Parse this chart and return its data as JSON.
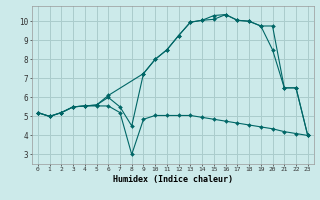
{
  "xlabel": "Humidex (Indice chaleur)",
  "bg_color": "#cceaea",
  "grid_color": "#aacccc",
  "line_color": "#006666",
  "xlim": [
    -0.5,
    23.5
  ],
  "ylim": [
    2.5,
    10.8
  ],
  "yticks": [
    3,
    4,
    5,
    6,
    7,
    8,
    9,
    10
  ],
  "xticks": [
    0,
    1,
    2,
    3,
    4,
    5,
    6,
    7,
    8,
    9,
    10,
    11,
    12,
    13,
    14,
    15,
    16,
    17,
    18,
    19,
    20,
    21,
    22,
    23
  ],
  "line1_x": [
    0,
    1,
    2,
    3,
    4,
    5,
    6,
    7,
    8,
    9,
    10,
    11,
    12,
    13,
    14,
    15,
    16,
    17,
    18,
    19,
    20,
    21,
    22,
    23
  ],
  "line1_y": [
    5.2,
    5.0,
    5.2,
    5.5,
    5.55,
    5.55,
    5.55,
    5.2,
    3.0,
    4.85,
    5.05,
    5.05,
    5.05,
    5.05,
    4.95,
    4.85,
    4.75,
    4.65,
    4.55,
    4.45,
    4.35,
    4.2,
    4.1,
    4.0
  ],
  "line2_x": [
    0,
    1,
    2,
    3,
    4,
    5,
    6,
    7,
    8,
    9,
    10,
    11,
    12,
    13,
    14,
    15,
    16,
    17,
    18,
    19,
    20,
    21,
    22,
    23
  ],
  "line2_y": [
    5.2,
    5.0,
    5.2,
    5.5,
    5.55,
    5.6,
    6.0,
    5.5,
    4.5,
    7.25,
    8.0,
    8.5,
    9.25,
    9.95,
    10.05,
    10.3,
    10.35,
    10.05,
    10.0,
    9.75,
    8.5,
    6.5,
    6.5,
    4.0
  ],
  "line3_x": [
    0,
    1,
    2,
    3,
    4,
    5,
    6,
    9,
    10,
    11,
    12,
    13,
    14,
    15,
    16,
    17,
    18,
    19,
    20,
    21,
    22,
    23
  ],
  "line3_y": [
    5.2,
    5.0,
    5.2,
    5.5,
    5.55,
    5.6,
    6.1,
    7.25,
    8.0,
    8.5,
    9.25,
    9.95,
    10.05,
    10.1,
    10.35,
    10.05,
    10.0,
    9.75,
    9.75,
    6.5,
    6.5,
    4.0
  ]
}
